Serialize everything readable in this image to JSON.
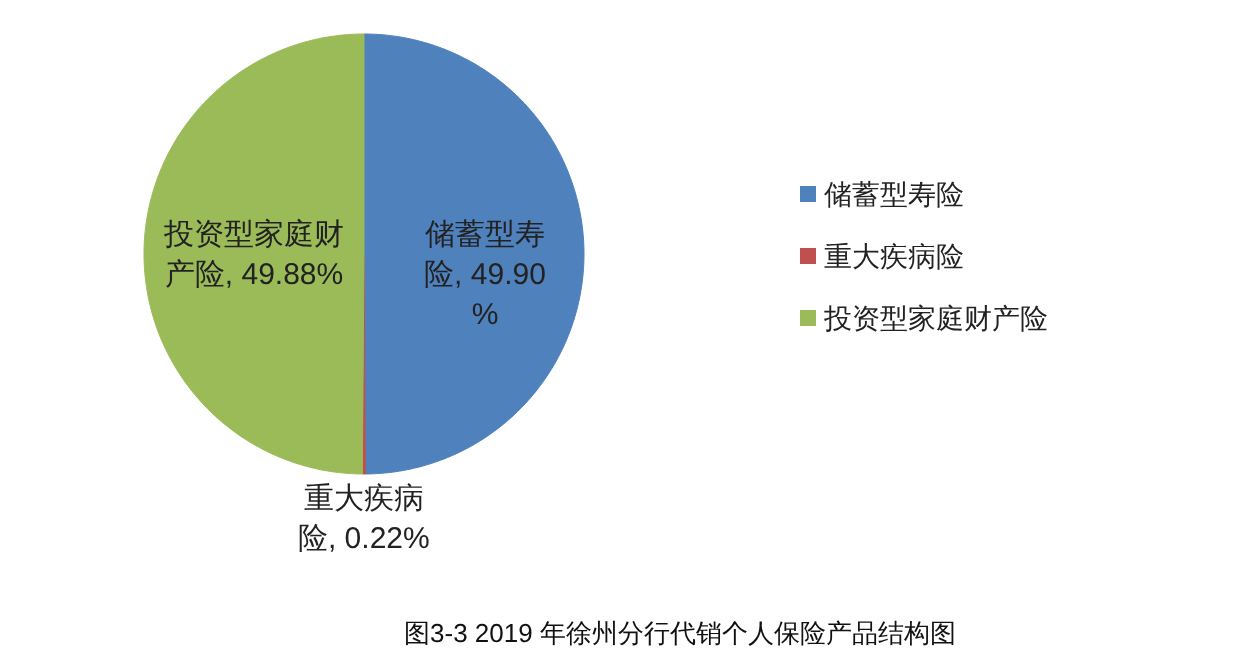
{
  "chart_data": {
    "type": "pie",
    "title": "图3-3 2019 年徐州分行代销个人保险产品结构图",
    "categories": [
      "储蓄型寿险",
      "重大疾病险",
      "投资型家庭财产险"
    ],
    "values": [
      49.9,
      0.22,
      49.88
    ],
    "value_labels": [
      "储蓄型寿险, 49.90%",
      "重大疾病险, 0.22%",
      "投资型家庭财产险, 49.88%"
    ],
    "colors": [
      "#4f81bd",
      "#c0504d",
      "#9bbb59"
    ],
    "legend": "right"
  }
}
